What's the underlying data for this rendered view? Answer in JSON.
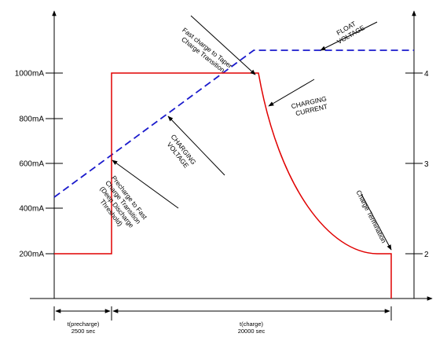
{
  "colors": {
    "current": "#e00000",
    "voltage": "#1a1acc",
    "axis": "#000000"
  },
  "left_ticks": [
    "1000mA",
    "800mA",
    "600mA",
    "400mA",
    "200mA"
  ],
  "right_ticks": [
    "4",
    "3",
    "2"
  ],
  "annotations": {
    "fast_to_taper": [
      "Fast charge to Taper",
      "Charge Transition"
    ],
    "float_voltage": [
      "FLOAT",
      "VOLTAGE"
    ],
    "charging_current": [
      "CHARGING",
      "CURRENT"
    ],
    "charging_voltage": [
      "CHARGING",
      "VOLTAGE"
    ],
    "precharge": [
      "Precharge to Fast",
      "Charge Transition",
      "(Deep Discharge",
      "Threshold)"
    ],
    "termination": "Charge Termination"
  },
  "intervals": {
    "precharge_name": "t(precharge)",
    "precharge_value": "2500 sec",
    "charge_name": "t(charge)",
    "charge_value": "20000 sec"
  }
}
